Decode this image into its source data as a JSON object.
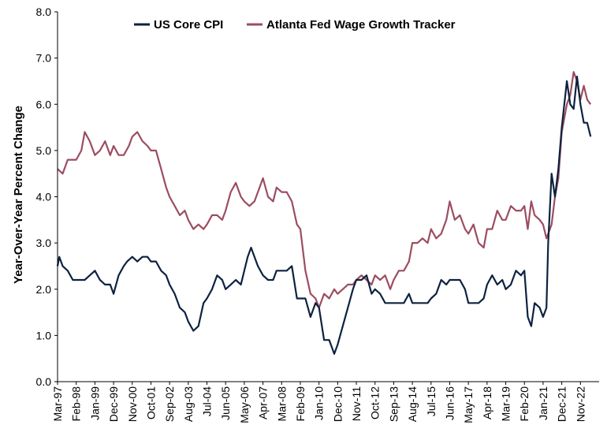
{
  "chart_data": {
    "type": "line",
    "title": "",
    "xlabel": "",
    "ylabel": "Year-Over-Year Percent Change",
    "ylim": [
      0,
      8
    ],
    "yticks": [
      "0.0",
      "1.0",
      "2.0",
      "3.0",
      "4.0",
      "5.0",
      "6.0",
      "7.0",
      "8.0"
    ],
    "xticks": [
      "Mar-97",
      "Feb-98",
      "Jan-99",
      "Dec-99",
      "Nov-00",
      "Oct-01",
      "Sep-02",
      "Aug-03",
      "Jul-04",
      "Jun-05",
      "May-06",
      "Apr-07",
      "Mar-08",
      "Feb-09",
      "Jan-10",
      "Dec-10",
      "Nov-11",
      "Oct-12",
      "Sep-13",
      "Aug-14",
      "Jul-15",
      "Jun-16",
      "May-17",
      "Apr-18",
      "Mar-19",
      "Feb-20",
      "Jan-21",
      "Dec-21",
      "Nov-22"
    ],
    "legend_position": "top",
    "grid": false,
    "series": [
      {
        "name": "US Core CPI",
        "color": "#0d2240",
        "points": [
          [
            "Mar-97",
            2.5
          ],
          [
            "Apr-97",
            2.7
          ],
          [
            "Jun-97",
            2.5
          ],
          [
            "Sep-97",
            2.4
          ],
          [
            "Dec-97",
            2.2
          ],
          [
            "Feb-98",
            2.2
          ],
          [
            "Apr-98",
            2.2
          ],
          [
            "Jul-98",
            2.2
          ],
          [
            "Oct-98",
            2.3
          ],
          [
            "Jan-99",
            2.4
          ],
          [
            "Apr-99",
            2.2
          ],
          [
            "Jul-99",
            2.1
          ],
          [
            "Oct-99",
            2.1
          ],
          [
            "Dec-99",
            1.9
          ],
          [
            "Mar-00",
            2.3
          ],
          [
            "Jun-00",
            2.5
          ],
          [
            "Aug-00",
            2.6
          ],
          [
            "Nov-00",
            2.7
          ],
          [
            "Feb-01",
            2.6
          ],
          [
            "May-01",
            2.7
          ],
          [
            "Aug-01",
            2.7
          ],
          [
            "Oct-01",
            2.6
          ],
          [
            "Jan-02",
            2.6
          ],
          [
            "Apr-02",
            2.4
          ],
          [
            "Jul-02",
            2.3
          ],
          [
            "Sep-02",
            2.1
          ],
          [
            "Dec-02",
            1.9
          ],
          [
            "Mar-03",
            1.6
          ],
          [
            "Jun-03",
            1.5
          ],
          [
            "Aug-03",
            1.3
          ],
          [
            "Nov-03",
            1.1
          ],
          [
            "Feb-04",
            1.2
          ],
          [
            "May-04",
            1.7
          ],
          [
            "Jul-04",
            1.8
          ],
          [
            "Oct-04",
            2.0
          ],
          [
            "Jan-05",
            2.3
          ],
          [
            "Apr-05",
            2.2
          ],
          [
            "Jun-05",
            2.0
          ],
          [
            "Sep-05",
            2.1
          ],
          [
            "Dec-05",
            2.2
          ],
          [
            "Mar-06",
            2.1
          ],
          [
            "May-06",
            2.4
          ],
          [
            "Jul-06",
            2.7
          ],
          [
            "Sep-06",
            2.9
          ],
          [
            "Nov-06",
            2.7
          ],
          [
            "Jan-07",
            2.5
          ],
          [
            "Apr-07",
            2.3
          ],
          [
            "Jul-07",
            2.2
          ],
          [
            "Oct-07",
            2.2
          ],
          [
            "Dec-07",
            2.4
          ],
          [
            "Mar-08",
            2.4
          ],
          [
            "Jun-08",
            2.4
          ],
          [
            "Sep-08",
            2.5
          ],
          [
            "Dec-08",
            1.8
          ],
          [
            "Feb-09",
            1.8
          ],
          [
            "May-09",
            1.8
          ],
          [
            "Aug-09",
            1.4
          ],
          [
            "Nov-09",
            1.7
          ],
          [
            "Jan-10",
            1.6
          ],
          [
            "Apr-10",
            0.9
          ],
          [
            "Jul-10",
            0.9
          ],
          [
            "Oct-10",
            0.6
          ],
          [
            "Dec-10",
            0.8
          ],
          [
            "Mar-11",
            1.2
          ],
          [
            "Jun-11",
            1.6
          ],
          [
            "Sep-11",
            2.0
          ],
          [
            "Nov-11",
            2.2
          ],
          [
            "Feb-12",
            2.2
          ],
          [
            "May-12",
            2.3
          ],
          [
            "Aug-12",
            1.9
          ],
          [
            "Oct-12",
            2.0
          ],
          [
            "Jan-13",
            1.9
          ],
          [
            "Apr-13",
            1.7
          ],
          [
            "Jul-13",
            1.7
          ],
          [
            "Sep-13",
            1.7
          ],
          [
            "Dec-13",
            1.7
          ],
          [
            "Mar-14",
            1.7
          ],
          [
            "Jun-14",
            1.9
          ],
          [
            "Aug-14",
            1.7
          ],
          [
            "Nov-14",
            1.7
          ],
          [
            "Feb-15",
            1.7
          ],
          [
            "May-15",
            1.7
          ],
          [
            "Jul-15",
            1.8
          ],
          [
            "Oct-15",
            1.9
          ],
          [
            "Jan-16",
            2.2
          ],
          [
            "Apr-16",
            2.1
          ],
          [
            "Jun-16",
            2.2
          ],
          [
            "Sep-16",
            2.2
          ],
          [
            "Dec-16",
            2.2
          ],
          [
            "Mar-17",
            2.0
          ],
          [
            "May-17",
            1.7
          ],
          [
            "Aug-17",
            1.7
          ],
          [
            "Nov-17",
            1.7
          ],
          [
            "Feb-18",
            1.8
          ],
          [
            "Apr-18",
            2.1
          ],
          [
            "Jul-18",
            2.3
          ],
          [
            "Oct-18",
            2.1
          ],
          [
            "Jan-19",
            2.2
          ],
          [
            "Mar-19",
            2.0
          ],
          [
            "Jun-19",
            2.1
          ],
          [
            "Sep-19",
            2.4
          ],
          [
            "Dec-19",
            2.3
          ],
          [
            "Feb-20",
            2.4
          ],
          [
            "Apr-20",
            1.4
          ],
          [
            "Jun-20",
            1.2
          ],
          [
            "Aug-20",
            1.7
          ],
          [
            "Nov-20",
            1.6
          ],
          [
            "Jan-21",
            1.4
          ],
          [
            "Mar-21",
            1.6
          ],
          [
            "Apr-21",
            3.0
          ],
          [
            "Jun-21",
            4.5
          ],
          [
            "Aug-21",
            4.0
          ],
          [
            "Oct-21",
            4.6
          ],
          [
            "Dec-21",
            5.5
          ],
          [
            "Mar-22",
            6.5
          ],
          [
            "May-22",
            6.0
          ],
          [
            "Jul-22",
            5.9
          ],
          [
            "Sep-22",
            6.6
          ],
          [
            "Nov-22",
            6.0
          ],
          [
            "Jan-23",
            5.6
          ],
          [
            "Mar-23",
            5.6
          ],
          [
            "May-23",
            5.3
          ]
        ]
      },
      {
        "name": "Atlanta Fed Wage Growth Tracker",
        "color": "#9c4d60",
        "points": [
          [
            "Mar-97",
            4.6
          ],
          [
            "Jun-97",
            4.5
          ],
          [
            "Sep-97",
            4.8
          ],
          [
            "Dec-97",
            4.8
          ],
          [
            "Feb-98",
            4.8
          ],
          [
            "May-98",
            5.0
          ],
          [
            "Jul-98",
            5.4
          ],
          [
            "Oct-98",
            5.2
          ],
          [
            "Jan-99",
            4.9
          ],
          [
            "Apr-99",
            5.0
          ],
          [
            "Jul-99",
            5.2
          ],
          [
            "Oct-99",
            4.9
          ],
          [
            "Dec-99",
            5.1
          ],
          [
            "Mar-00",
            4.9
          ],
          [
            "Jun-00",
            4.9
          ],
          [
            "Sep-00",
            5.1
          ],
          [
            "Nov-00",
            5.3
          ],
          [
            "Feb-01",
            5.4
          ],
          [
            "May-01",
            5.2
          ],
          [
            "Aug-01",
            5.1
          ],
          [
            "Oct-01",
            5.0
          ],
          [
            "Jan-02",
            5.0
          ],
          [
            "Apr-02",
            4.6
          ],
          [
            "Jul-02",
            4.2
          ],
          [
            "Sep-02",
            4.0
          ],
          [
            "Dec-02",
            3.8
          ],
          [
            "Mar-03",
            3.6
          ],
          [
            "Jun-03",
            3.7
          ],
          [
            "Aug-03",
            3.5
          ],
          [
            "Nov-03",
            3.3
          ],
          [
            "Feb-04",
            3.4
          ],
          [
            "May-04",
            3.3
          ],
          [
            "Jul-04",
            3.4
          ],
          [
            "Oct-04",
            3.6
          ],
          [
            "Jan-05",
            3.6
          ],
          [
            "Apr-05",
            3.5
          ],
          [
            "Jun-05",
            3.7
          ],
          [
            "Sep-05",
            4.1
          ],
          [
            "Dec-05",
            4.3
          ],
          [
            "Mar-06",
            4.0
          ],
          [
            "May-06",
            3.9
          ],
          [
            "Aug-06",
            3.8
          ],
          [
            "Nov-06",
            3.9
          ],
          [
            "Feb-07",
            4.2
          ],
          [
            "Apr-07",
            4.4
          ],
          [
            "Jul-07",
            4.0
          ],
          [
            "Oct-07",
            3.9
          ],
          [
            "Dec-07",
            4.2
          ],
          [
            "Mar-08",
            4.1
          ],
          [
            "Jun-08",
            4.1
          ],
          [
            "Sep-08",
            3.9
          ],
          [
            "Dec-08",
            3.4
          ],
          [
            "Feb-09",
            3.3
          ],
          [
            "May-09",
            2.4
          ],
          [
            "Aug-09",
            1.9
          ],
          [
            "Nov-09",
            1.8
          ],
          [
            "Jan-10",
            1.6
          ],
          [
            "Apr-10",
            1.9
          ],
          [
            "Jul-10",
            1.8
          ],
          [
            "Oct-10",
            2.0
          ],
          [
            "Dec-10",
            1.9
          ],
          [
            "Mar-11",
            2.0
          ],
          [
            "Jun-11",
            2.1
          ],
          [
            "Sep-11",
            2.1
          ],
          [
            "Nov-11",
            2.2
          ],
          [
            "Feb-12",
            2.3
          ],
          [
            "May-12",
            2.2
          ],
          [
            "Aug-12",
            2.1
          ],
          [
            "Oct-12",
            2.3
          ],
          [
            "Jan-13",
            2.2
          ],
          [
            "Apr-13",
            2.3
          ],
          [
            "Jul-13",
            2.0
          ],
          [
            "Sep-13",
            2.2
          ],
          [
            "Dec-13",
            2.4
          ],
          [
            "Mar-14",
            2.4
          ],
          [
            "Jun-14",
            2.6
          ],
          [
            "Aug-14",
            3.0
          ],
          [
            "Nov-14",
            3.0
          ],
          [
            "Feb-15",
            3.1
          ],
          [
            "May-15",
            3.0
          ],
          [
            "Jul-15",
            3.3
          ],
          [
            "Oct-15",
            3.1
          ],
          [
            "Jan-16",
            3.2
          ],
          [
            "Apr-16",
            3.5
          ],
          [
            "Jun-16",
            3.9
          ],
          [
            "Sep-16",
            3.5
          ],
          [
            "Dec-16",
            3.6
          ],
          [
            "Mar-17",
            3.3
          ],
          [
            "May-17",
            3.2
          ],
          [
            "Aug-17",
            3.4
          ],
          [
            "Nov-17",
            3.0
          ],
          [
            "Feb-18",
            2.9
          ],
          [
            "Apr-18",
            3.3
          ],
          [
            "Jul-18",
            3.3
          ],
          [
            "Oct-18",
            3.7
          ],
          [
            "Jan-19",
            3.5
          ],
          [
            "Mar-19",
            3.5
          ],
          [
            "Jun-19",
            3.8
          ],
          [
            "Sep-19",
            3.7
          ],
          [
            "Dec-19",
            3.7
          ],
          [
            "Feb-20",
            3.8
          ],
          [
            "Apr-20",
            3.3
          ],
          [
            "Jun-20",
            3.9
          ],
          [
            "Aug-20",
            3.6
          ],
          [
            "Nov-20",
            3.5
          ],
          [
            "Jan-21",
            3.4
          ],
          [
            "Mar-21",
            3.1
          ],
          [
            "Apr-21",
            3.2
          ],
          [
            "Jun-21",
            3.4
          ],
          [
            "Aug-21",
            4.0
          ],
          [
            "Oct-21",
            4.4
          ],
          [
            "Dec-21",
            5.4
          ],
          [
            "Mar-22",
            6.0
          ],
          [
            "May-22",
            6.2
          ],
          [
            "Jul-22",
            6.7
          ],
          [
            "Sep-22",
            6.5
          ],
          [
            "Nov-22",
            6.1
          ],
          [
            "Jan-23",
            6.4
          ],
          [
            "Mar-23",
            6.1
          ],
          [
            "May-23",
            6.0
          ]
        ]
      }
    ]
  }
}
